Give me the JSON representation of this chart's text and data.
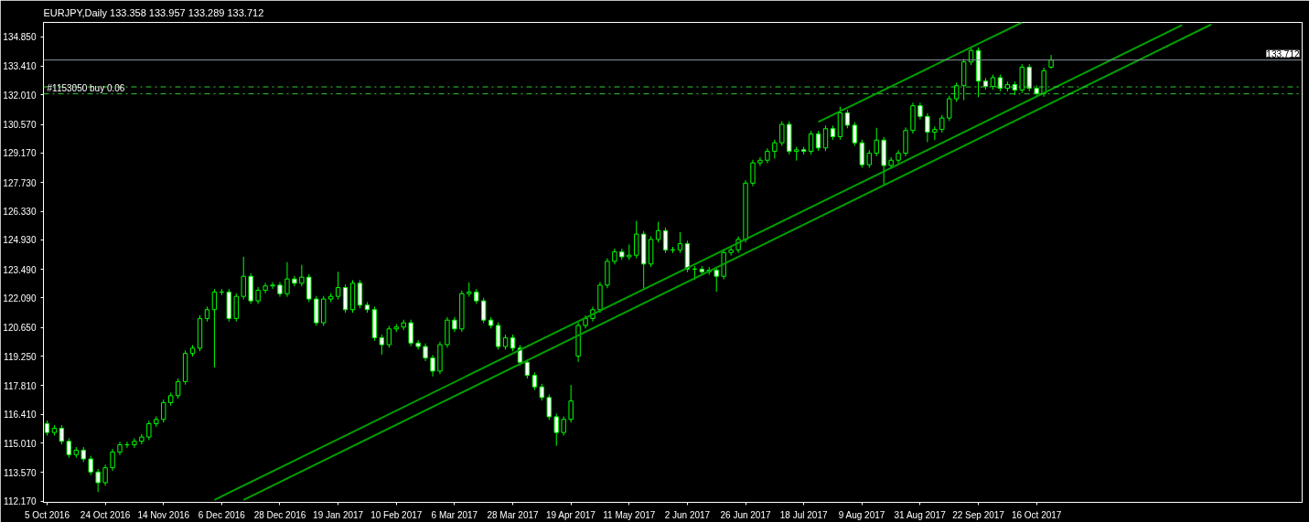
{
  "chart_data": {
    "type": "candlestick",
    "title": "EURJPY,Daily  133.358 133.957 133.289 133.712",
    "categories": [
      "5 Oct 2016",
      null,
      null,
      null,
      null,
      null,
      null,
      null,
      "24 Oct 2016",
      null,
      null,
      null,
      null,
      null,
      null,
      null,
      "14 Nov 2016",
      null,
      null,
      null,
      null,
      null,
      null,
      null,
      "6 Dec 2016",
      null,
      null,
      null,
      null,
      null,
      null,
      null,
      "28 Dec 2016",
      null,
      null,
      null,
      null,
      null,
      null,
      null,
      "19 Jan 2017",
      null,
      null,
      null,
      null,
      null,
      null,
      null,
      "10 Feb 2017",
      null,
      null,
      null,
      null,
      null,
      null,
      null,
      "6 Mar 2017",
      null,
      null,
      null,
      null,
      null,
      null,
      null,
      "28 Mar 2017",
      null,
      null,
      null,
      null,
      null,
      null,
      null,
      "19 Apr 2017",
      null,
      null,
      null,
      null,
      null,
      null,
      null,
      "11 May 2017",
      null,
      null,
      null,
      null,
      null,
      null,
      null,
      "2 Jun 2017",
      null,
      null,
      null,
      null,
      null,
      null,
      null,
      "26 Jun 2017",
      null,
      null,
      null,
      null,
      null,
      null,
      null,
      "18 Jul 2017",
      null,
      null,
      null,
      null,
      null,
      null,
      null,
      "9 Aug 2017",
      null,
      null,
      null,
      null,
      null,
      null,
      null,
      "31 Aug 2017",
      null,
      null,
      null,
      null,
      null,
      null,
      null,
      "22 Sep 2017",
      null,
      null,
      null,
      null,
      null,
      null,
      null,
      "16 Oct 2017",
      null,
      null,
      null,
      null,
      null,
      null,
      null,
      null,
      null,
      null,
      null,
      null,
      null,
      null,
      null,
      null,
      null,
      null,
      null,
      null,
      null,
      null,
      null,
      null
    ],
    "color": "#00ff00",
    "ohlc": [
      [
        115.96,
        116.11,
        115.37,
        115.52
      ],
      [
        115.52,
        115.88,
        115.37,
        115.73
      ],
      [
        115.73,
        115.88,
        114.94,
        115.09
      ],
      [
        115.09,
        115.24,
        114.29,
        114.44
      ],
      [
        114.44,
        114.81,
        114.29,
        114.66
      ],
      [
        114.66,
        114.81,
        114.08,
        114.23
      ],
      [
        114.23,
        114.38,
        113.44,
        113.59
      ],
      [
        113.59,
        113.74,
        112.62,
        113.07
      ],
      [
        113.07,
        113.95,
        112.92,
        113.8
      ],
      [
        113.8,
        114.72,
        113.65,
        114.57
      ],
      [
        114.57,
        115.07,
        114.42,
        114.92
      ],
      [
        114.92,
        115.07,
        114.77,
        114.92
      ],
      [
        114.92,
        115.24,
        114.77,
        115.09
      ],
      [
        115.09,
        115.45,
        114.94,
        115.3
      ],
      [
        115.3,
        116.1,
        115.15,
        115.95
      ],
      [
        115.95,
        116.31,
        115.8,
        116.16
      ],
      [
        116.16,
        117.13,
        116.01,
        116.98
      ],
      [
        116.98,
        117.47,
        116.83,
        117.32
      ],
      [
        117.32,
        118.16,
        117.17,
        118.01
      ],
      [
        118.01,
        119.53,
        117.86,
        119.38
      ],
      [
        119.38,
        119.79,
        119.23,
        119.64
      ],
      [
        119.64,
        121.24,
        119.49,
        121.09
      ],
      [
        121.09,
        121.67,
        120.94,
        121.52
      ],
      [
        121.52,
        122.53,
        118.7,
        122.38
      ],
      [
        122.38,
        122.53,
        122.23,
        122.38
      ],
      [
        122.38,
        122.53,
        120.94,
        121.09
      ],
      [
        121.09,
        122.32,
        120.94,
        122.17
      ],
      [
        122.17,
        124.1,
        122.02,
        123.15
      ],
      [
        123.15,
        123.3,
        121.8,
        121.95
      ],
      [
        121.95,
        122.62,
        121.8,
        122.47
      ],
      [
        122.47,
        122.83,
        122.32,
        122.68
      ],
      [
        122.68,
        122.87,
        122.53,
        122.72
      ],
      [
        122.72,
        122.87,
        122.15,
        122.3
      ],
      [
        122.3,
        123.84,
        122.15,
        123.02
      ],
      [
        123.02,
        123.17,
        122.66,
        122.81
      ],
      [
        122.81,
        123.71,
        122.66,
        123.11
      ],
      [
        123.11,
        123.26,
        121.89,
        122.04
      ],
      [
        122.04,
        122.19,
        120.73,
        120.88
      ],
      [
        120.88,
        122.19,
        120.73,
        122.04
      ],
      [
        122.04,
        122.32,
        121.89,
        122.17
      ],
      [
        122.17,
        123.37,
        122.02,
        122.6
      ],
      [
        122.6,
        122.75,
        121.37,
        121.52
      ],
      [
        121.52,
        122.96,
        121.37,
        122.81
      ],
      [
        122.81,
        122.96,
        121.59,
        121.74
      ],
      [
        121.74,
        121.89,
        121.37,
        121.52
      ],
      [
        121.52,
        121.67,
        120.0,
        120.15
      ],
      [
        120.15,
        120.3,
        119.33,
        119.81
      ],
      [
        119.81,
        120.73,
        119.66,
        120.58
      ],
      [
        120.58,
        120.82,
        120.43,
        120.67
      ],
      [
        120.67,
        121.03,
        120.52,
        120.88
      ],
      [
        120.88,
        121.03,
        119.74,
        119.89
      ],
      [
        119.89,
        120.04,
        119.57,
        119.72
      ],
      [
        119.72,
        119.87,
        119.01,
        119.16
      ],
      [
        119.16,
        119.31,
        118.26,
        118.52
      ],
      [
        118.52,
        119.96,
        118.37,
        119.81
      ],
      [
        119.81,
        121.16,
        119.66,
        121.01
      ],
      [
        121.01,
        121.16,
        120.43,
        120.58
      ],
      [
        120.58,
        122.45,
        120.43,
        122.3
      ],
      [
        122.3,
        122.85,
        122.15,
        122.38
      ],
      [
        122.38,
        122.53,
        121.8,
        121.95
      ],
      [
        121.95,
        122.1,
        120.86,
        121.01
      ],
      [
        121.01,
        121.16,
        120.6,
        120.75
      ],
      [
        120.75,
        120.9,
        119.57,
        119.72
      ],
      [
        119.72,
        120.3,
        119.57,
        120.15
      ],
      [
        120.15,
        120.3,
        119.49,
        119.64
      ],
      [
        119.64,
        119.79,
        118.8,
        118.95
      ],
      [
        118.95,
        119.1,
        118.16,
        118.31
      ],
      [
        118.31,
        118.46,
        117.6,
        117.75
      ],
      [
        117.75,
        117.9,
        117.08,
        117.23
      ],
      [
        117.23,
        117.38,
        116.14,
        116.29
      ],
      [
        116.29,
        116.44,
        114.87,
        115.52
      ],
      [
        115.52,
        116.31,
        115.37,
        116.16
      ],
      [
        116.16,
        117.84,
        116.01,
        117.06
      ],
      [
        119.25,
        120.9,
        118.97,
        120.75
      ],
      [
        120.75,
        121.24,
        120.6,
        121.09
      ],
      [
        121.09,
        121.67,
        120.94,
        121.52
      ],
      [
        121.52,
        122.87,
        121.37,
        122.72
      ],
      [
        122.72,
        124.03,
        122.57,
        123.88
      ],
      [
        123.88,
        124.5,
        123.73,
        124.35
      ],
      [
        124.35,
        124.5,
        123.95,
        124.1
      ],
      [
        124.1,
        124.7,
        123.95,
        124.18
      ],
      [
        124.18,
        125.86,
        124.03,
        125.21
      ],
      [
        125.21,
        125.36,
        122.55,
        123.75
      ],
      [
        123.75,
        125.1,
        123.6,
        124.95
      ],
      [
        124.95,
        125.81,
        124.8,
        125.38
      ],
      [
        125.38,
        125.53,
        124.29,
        124.44
      ],
      [
        124.44,
        124.59,
        124.29,
        124.44
      ],
      [
        124.44,
        125.3,
        124.29,
        124.74
      ],
      [
        124.74,
        124.89,
        123.35,
        123.5
      ],
      [
        123.5,
        123.65,
        122.97,
        123.5
      ],
      [
        123.5,
        123.65,
        123.22,
        123.37
      ],
      [
        123.37,
        123.6,
        123.22,
        123.45
      ],
      [
        123.45,
        123.6,
        122.4,
        123.15
      ],
      [
        123.15,
        124.46,
        123.0,
        124.31
      ],
      [
        124.31,
        124.59,
        124.16,
        124.44
      ],
      [
        124.44,
        125.1,
        124.29,
        124.95
      ],
      [
        124.95,
        127.85,
        124.8,
        127.7
      ],
      [
        127.7,
        128.84,
        127.55,
        128.69
      ],
      [
        128.69,
        128.97,
        128.54,
        128.82
      ],
      [
        128.82,
        129.4,
        128.67,
        129.25
      ],
      [
        129.25,
        129.82,
        128.9,
        129.67
      ],
      [
        129.67,
        130.72,
        129.52,
        130.57
      ],
      [
        130.57,
        130.72,
        129.1,
        129.25
      ],
      [
        129.25,
        129.48,
        128.8,
        129.33
      ],
      [
        129.33,
        129.48,
        129.1,
        129.25
      ],
      [
        129.25,
        130.25,
        129.1,
        130.1
      ],
      [
        130.1,
        130.25,
        129.27,
        129.42
      ],
      [
        129.42,
        130.51,
        129.27,
        130.36
      ],
      [
        130.36,
        130.51,
        129.82,
        129.97
      ],
      [
        129.97,
        131.43,
        129.82,
        131.13
      ],
      [
        131.13,
        131.28,
        130.38,
        130.53
      ],
      [
        130.53,
        130.68,
        129.52,
        129.67
      ],
      [
        129.67,
        129.82,
        128.45,
        128.6
      ],
      [
        128.6,
        129.31,
        128.45,
        129.16
      ],
      [
        129.16,
        130.4,
        129.01,
        129.8
      ],
      [
        129.8,
        129.95,
        127.62,
        128.56
      ],
      [
        128.56,
        128.97,
        128.41,
        128.82
      ],
      [
        128.82,
        129.31,
        128.67,
        129.16
      ],
      [
        129.16,
        130.42,
        129.01,
        130.27
      ],
      [
        130.27,
        131.63,
        130.12,
        131.48
      ],
      [
        131.48,
        131.63,
        130.81,
        130.96
      ],
      [
        130.96,
        131.11,
        129.7,
        130.19
      ],
      [
        130.19,
        130.47,
        129.8,
        130.32
      ],
      [
        130.32,
        131.03,
        130.17,
        130.88
      ],
      [
        130.88,
        131.97,
        130.73,
        131.82
      ],
      [
        131.82,
        132.61,
        131.67,
        132.46
      ],
      [
        132.46,
        133.77,
        131.75,
        133.62
      ],
      [
        133.62,
        134.35,
        133.47,
        134.18
      ],
      [
        134.18,
        134.33,
        131.9,
        132.68
      ],
      [
        132.68,
        132.83,
        132.27,
        132.42
      ],
      [
        132.42,
        133.0,
        132.27,
        132.85
      ],
      [
        132.85,
        133.0,
        132.18,
        132.33
      ],
      [
        132.33,
        132.66,
        132.18,
        132.51
      ],
      [
        132.51,
        132.66,
        132.0,
        132.25
      ],
      [
        132.25,
        133.51,
        132.1,
        133.36
      ],
      [
        133.36,
        133.51,
        132.18,
        132.33
      ],
      [
        132.33,
        132.48,
        131.92,
        132.07
      ],
      [
        132.07,
        133.34,
        131.92,
        133.19
      ],
      [
        133.358,
        133.957,
        133.289,
        133.712
      ],
      null,
      null,
      null,
      null,
      null,
      null,
      null,
      null,
      null,
      null,
      null,
      null,
      null,
      null,
      null,
      null,
      null,
      null,
      null,
      null,
      null,
      null
    ],
    "series": [
      {
        "type": "line",
        "color": "#00a000",
        "values": [
          null,
          null,
          null,
          null,
          null,
          null,
          null,
          null,
          null,
          null,
          null,
          null,
          null,
          null,
          null,
          null,
          null,
          null,
          null,
          null,
          null,
          null,
          null,
          null,
          null,
          null,
          null,
          null,
          null,
          null,
          null,
          null,
          null,
          null,
          null,
          null,
          null,
          null,
          null,
          null,
          null,
          null,
          null,
          null,
          null,
          null,
          null,
          null,
          null,
          null,
          null,
          null,
          null,
          null,
          null,
          null,
          null,
          null,
          null,
          null,
          null,
          null,
          null,
          null,
          null,
          null,
          null,
          null,
          null,
          null,
          null,
          null,
          null,
          null,
          null,
          null,
          null,
          null,
          null,
          null,
          null,
          null,
          null,
          null,
          null,
          null,
          null,
          null,
          null,
          null,
          null,
          null,
          null,
          null,
          null,
          null,
          null,
          null,
          null,
          null,
          null,
          null,
          null,
          null,
          null,
          null,
          130.69,
          null,
          null,
          null,
          null,
          null,
          null,
          null,
          null,
          null,
          null,
          null,
          null,
          null,
          null,
          null,
          null,
          null,
          null,
          null,
          null,
          null,
          null,
          null,
          null,
          null,
          null,
          null,
          135.55,
          null,
          null,
          null,
          null,
          null,
          null,
          null,
          null,
          null,
          null,
          null,
          null,
          null,
          null,
          null,
          null,
          null,
          null,
          null,
          null,
          null,
          null,
          null,
          null,
          null,
          null
        ]
      },
      {
        "type": "line",
        "color": "#00a000",
        "values": [
          null,
          null,
          null,
          null,
          null,
          null,
          null,
          null,
          null,
          null,
          null,
          null,
          null,
          null,
          null,
          null,
          null,
          null,
          null,
          null,
          null,
          null,
          null,
          112.23,
          null,
          null,
          null,
          null,
          null,
          null,
          null,
          null,
          null,
          null,
          null,
          null,
          null,
          null,
          null,
          null,
          null,
          null,
          null,
          null,
          null,
          null,
          null,
          null,
          null,
          null,
          null,
          null,
          null,
          null,
          null,
          null,
          null,
          null,
          null,
          null,
          null,
          null,
          null,
          null,
          null,
          null,
          null,
          null,
          null,
          null,
          null,
          null,
          null,
          null,
          null,
          null,
          null,
          null,
          null,
          null,
          null,
          null,
          null,
          null,
          null,
          null,
          null,
          null,
          null,
          null,
          null,
          null,
          null,
          null,
          null,
          null,
          null,
          null,
          null,
          null,
          null,
          null,
          null,
          null,
          null,
          null,
          null,
          null,
          null,
          null,
          null,
          null,
          null,
          null,
          null,
          null,
          null,
          null,
          null,
          null,
          null,
          null,
          null,
          null,
          null,
          null,
          null,
          null,
          null,
          null,
          null,
          null,
          null,
          null,
          null,
          null,
          null,
          null,
          null,
          null,
          null,
          null,
          null,
          null,
          null,
          null,
          null,
          null,
          null,
          null,
          null,
          null,
          null,
          null,
          null,
          null,
          135.42,
          null,
          null,
          null,
          null
        ]
      },
      {
        "type": "line",
        "color": "#00a000",
        "values": [
          null,
          null,
          null,
          null,
          null,
          null,
          null,
          null,
          null,
          null,
          null,
          null,
          null,
          null,
          null,
          null,
          null,
          null,
          null,
          null,
          null,
          null,
          null,
          null,
          null,
          null,
          null,
          112.23,
          null,
          null,
          null,
          null,
          null,
          null,
          null,
          null,
          null,
          null,
          null,
          null,
          null,
          null,
          null,
          null,
          null,
          null,
          null,
          null,
          null,
          null,
          null,
          null,
          null,
          null,
          null,
          null,
          null,
          null,
          null,
          null,
          null,
          null,
          null,
          null,
          null,
          null,
          null,
          null,
          null,
          null,
          null,
          null,
          null,
          null,
          null,
          null,
          null,
          null,
          null,
          null,
          null,
          null,
          null,
          null,
          null,
          null,
          null,
          null,
          null,
          null,
          null,
          null,
          null,
          null,
          null,
          null,
          null,
          null,
          null,
          null,
          null,
          null,
          null,
          null,
          null,
          null,
          null,
          null,
          null,
          null,
          null,
          null,
          null,
          null,
          null,
          null,
          null,
          null,
          null,
          null,
          null,
          null,
          null,
          null,
          null,
          null,
          null,
          null,
          null,
          null,
          null,
          null,
          null,
          null,
          null,
          null,
          null,
          null,
          null,
          null,
          null,
          null,
          null,
          null,
          null,
          null,
          null,
          null,
          null,
          null,
          null,
          null,
          null,
          null,
          null,
          null,
          null,
          null,
          null,
          null,
          135.45
        ]
      }
    ],
    "ylim": [
      112.11,
      135.55
    ],
    "yticks": [
      {
        "value": 112.17,
        "label": "112.170"
      },
      {
        "value": 113.57,
        "label": "113.570"
      },
      {
        "value": 115.01,
        "label": "115.010"
      },
      {
        "value": 116.41,
        "label": "116.410"
      },
      {
        "value": 117.81,
        "label": "117.810"
      },
      {
        "value": 119.25,
        "label": "119.250"
      },
      {
        "value": 120.65,
        "label": "120.650"
      },
      {
        "value": 122.09,
        "label": "122.090"
      },
      {
        "value": 123.49,
        "label": "123.490"
      },
      {
        "value": 124.93,
        "label": "124.930"
      },
      {
        "value": 126.33,
        "label": "126.330"
      },
      {
        "value": 127.73,
        "label": "127.730"
      },
      {
        "value": 129.17,
        "label": "129.170"
      },
      {
        "value": 130.57,
        "label": "130.570"
      },
      {
        "value": 132.01,
        "label": "132.010"
      },
      {
        "value": 133.41,
        "label": "133.410"
      },
      {
        "value": 134.85,
        "label": "134.850"
      }
    ],
    "ref_lines": [
      {
        "axis": "y",
        "value": 133.712,
        "label": "133.712",
        "color": "#8c96a0",
        "line_style": "solid"
      },
      {
        "axis": "y",
        "value": 132.4,
        "color": "#32cd32",
        "line_style": "dashdot"
      },
      {
        "axis": "y",
        "value": 132.06,
        "label": "#1153050 buy 0.06",
        "color": "#32cd32",
        "line_style": "dashdot"
      }
    ]
  }
}
